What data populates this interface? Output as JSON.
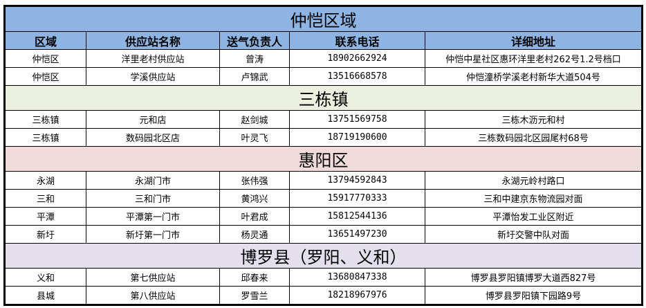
{
  "colors": {
    "blue": "#8DB4E2",
    "green": "#EBF1DE",
    "pink": "#F2DCDB",
    "lavender": "#E4DFEC"
  },
  "headers": [
    "区域",
    "供应站名称",
    "送气负责人",
    "联系电话",
    "详细地址"
  ],
  "sections": [
    {
      "title": "仲恺区域",
      "color": "#8DB4E2",
      "header": true,
      "rows": [
        [
          "仲恺区",
          "洋里老村供应站",
          "曾涛",
          "18902662924",
          "仲恺中星社区惠环洋里老村262号1.2号档口"
        ],
        [
          "仲恺区",
          "学溪供应站",
          "卢锦武",
          "13516668578",
          "仲恺潼桥学溪老村新华大道504号"
        ]
      ]
    },
    {
      "title": "三栋镇",
      "color": "#EBF1DE",
      "rows": [
        [
          "三栋镇",
          "元和店",
          "赵剑城",
          "13751569758",
          "三栋木沥元和村"
        ],
        [
          "三栋镇",
          "数码园北区店",
          "叶灵飞",
          "18719190600",
          "三栋数码园北区园尾村68号"
        ]
      ]
    },
    {
      "title": "惠阳区",
      "color": "#F2DCDB",
      "rows": [
        [
          "永湖",
          "永湖门市",
          "张伟强",
          "13794592843",
          "永湖元岭村路口"
        ],
        [
          "三和",
          "三和门市",
          "黄鸿兴",
          "15917770333",
          "三和中建京东物流园对面"
        ],
        [
          "平潭",
          "平潭第一门市",
          "叶君成",
          "15812544136",
          "平潭怡发工业区附近"
        ],
        [
          "新圩",
          "新圩第一门市",
          "杨灵通",
          "13651497230",
          "新圩交警中队对面"
        ]
      ]
    },
    {
      "title": "博罗县（罗阳、义和）",
      "color": "#E4DFEC",
      "rows": [
        [
          "义和",
          "第七供应站",
          "邱春来",
          "13680847338",
          "博罗县罗阳镇博罗大道西827号"
        ],
        [
          "县城",
          "第八供应站",
          "罗雪兰",
          "18218967976",
          "博罗县罗阳镇下园路9号"
        ]
      ]
    }
  ]
}
